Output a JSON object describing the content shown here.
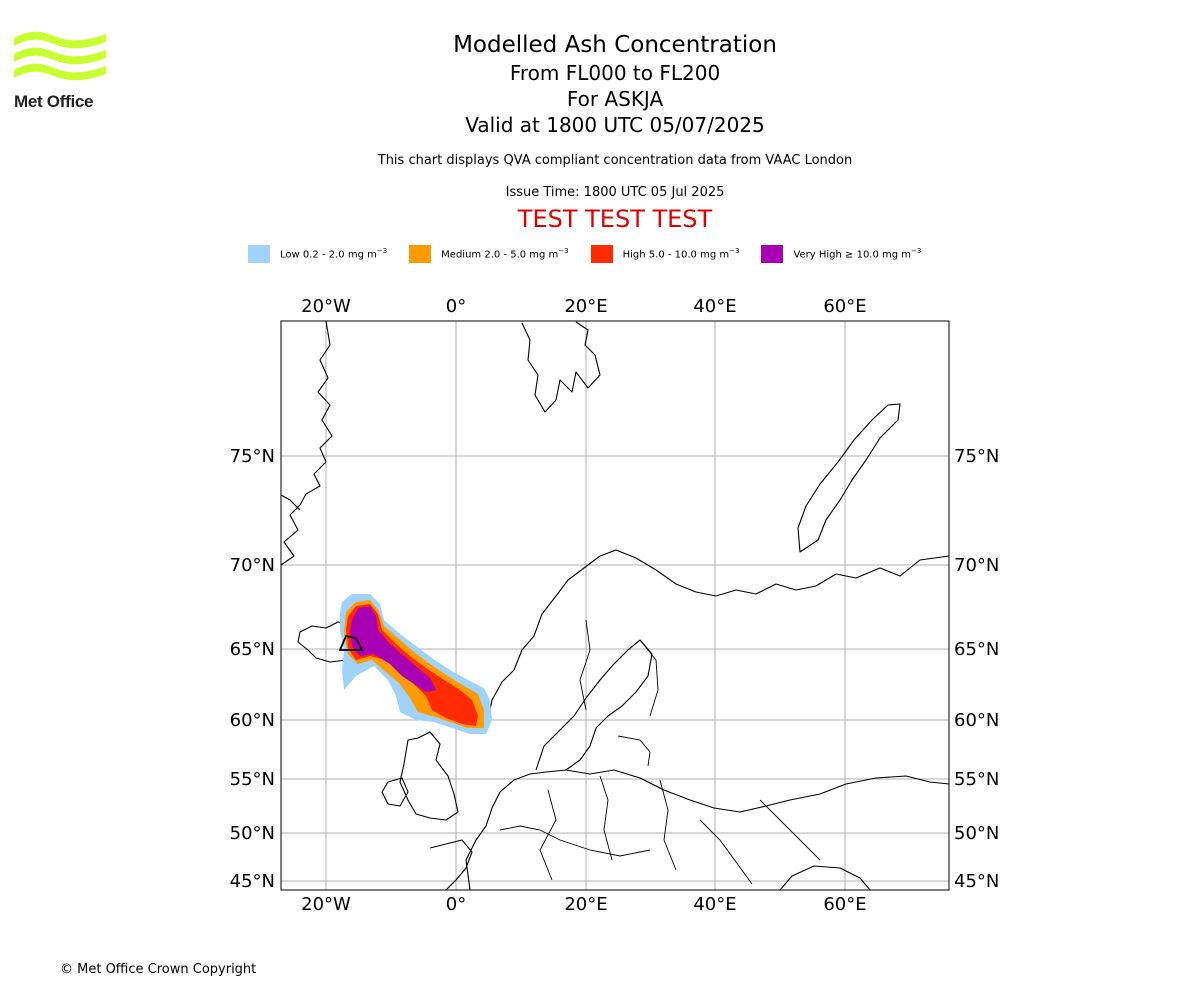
{
  "logo": {
    "text": "Met Office",
    "color": "#c8ff2e"
  },
  "title": {
    "main": "Modelled Ash Concentration",
    "levels": "From FL000 to FL200",
    "volcano": "For ASKJA",
    "valid": "Valid at 1800 UTC 05/07/2025",
    "description": "This chart displays QVA compliant concentration data from VAAC London",
    "issue_time": "Issue Time: 1800 UTC 05 Jul 2025",
    "test_banner": "TEST TEST TEST"
  },
  "legend": [
    {
      "label": "Low 0.2 - 2.0 mg m",
      "sup": "−3",
      "color": "#a0d2fa"
    },
    {
      "label": "Medium 2.0 - 5.0 mg m",
      "sup": "−3",
      "color": "#ff9a00"
    },
    {
      "label": "High 5.0 - 10.0 mg m",
      "sup": "−3",
      "color": "#ff2a00"
    },
    {
      "label": "Very High ≥ 10.0 mg m",
      "sup": "−3",
      "color": "#aa00b4"
    }
  ],
  "map": {
    "lon_ticks": [
      "20°W",
      "0°",
      "20°E",
      "40°E",
      "60°E"
    ],
    "lat_ticks": [
      "75°N",
      "70°N",
      "65°N",
      "60°N",
      "55°N",
      "50°N",
      "45°N"
    ],
    "gridline_color": "#b0b0b0"
  },
  "copyright": "© Met Office Crown Copyright"
}
